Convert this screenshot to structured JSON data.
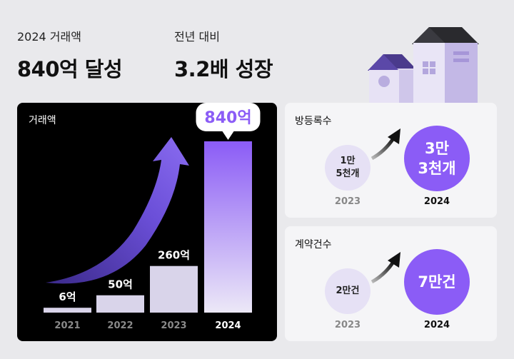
{
  "kpis": [
    {
      "label": "2024 거래액",
      "value": "840억 달성"
    },
    {
      "label": "전년 대비",
      "value": "3.2배 성장"
    }
  ],
  "chart_data": {
    "type": "bar",
    "title": "거래액",
    "categories": [
      "2021",
      "2022",
      "2023",
      "2024"
    ],
    "values": [
      6,
      50,
      260,
      840
    ],
    "data_labels": [
      "6억",
      "50억",
      "260억",
      "840억"
    ],
    "highlight_index": 3,
    "colors": {
      "bar": "#d9d4ea",
      "highlight_top": "#8b5cf6",
      "highlight_bottom": "#ece8f7",
      "arrow": "#7c5ce8",
      "background": "#000000"
    }
  },
  "rooms": {
    "title": "방등록수",
    "from": {
      "year": "2023",
      "value": "1만\n5천개"
    },
    "to": {
      "year": "2024",
      "value": "3만\n3천개"
    }
  },
  "contracts": {
    "title": "계약건수",
    "from": {
      "year": "2023",
      "value": "2만건"
    },
    "to": {
      "year": "2024",
      "value": "7만건"
    }
  },
  "accent_color": "#8b5cf6"
}
